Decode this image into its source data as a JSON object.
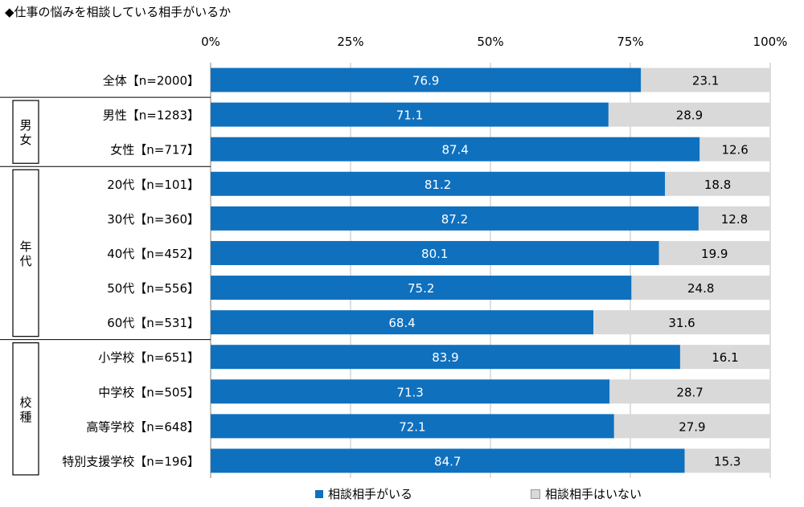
{
  "chart_data": {
    "type": "bar",
    "orientation": "horizontal",
    "stacked": true,
    "title": "◆仕事の悩みを相談している相手がいるか",
    "x_ticks": [
      "0%",
      "25%",
      "50%",
      "75%",
      "100%"
    ],
    "xlim": [
      0,
      100
    ],
    "grid": true,
    "legend_position": "bottom",
    "categories": [
      "全体【n=2000】",
      "男性【n=1283】",
      "女性【n=717】",
      "20代【n=101】",
      "30代【n=360】",
      "40代【n=452】",
      "50代【n=556】",
      "60代【n=531】",
      "小学校【n=651】",
      "中学校【n=505】",
      "高等学校【n=648】",
      "特別支援学校【n=196】"
    ],
    "groups": [
      {
        "label": "男女",
        "start": 1,
        "end": 2
      },
      {
        "label": "年代",
        "start": 3,
        "end": 7
      },
      {
        "label": "校種",
        "start": 8,
        "end": 11
      }
    ],
    "series": [
      {
        "name": "相談相手がいる",
        "color": "#0F70BE",
        "values": [
          76.9,
          71.1,
          87.4,
          81.2,
          87.2,
          80.1,
          75.2,
          68.4,
          83.9,
          71.3,
          72.1,
          84.7
        ]
      },
      {
        "name": "相談相手はいない",
        "color": "#D9D9D9",
        "values": [
          23.1,
          28.9,
          12.6,
          18.8,
          12.8,
          19.9,
          24.8,
          31.6,
          16.1,
          28.7,
          27.9,
          15.3
        ]
      }
    ]
  }
}
